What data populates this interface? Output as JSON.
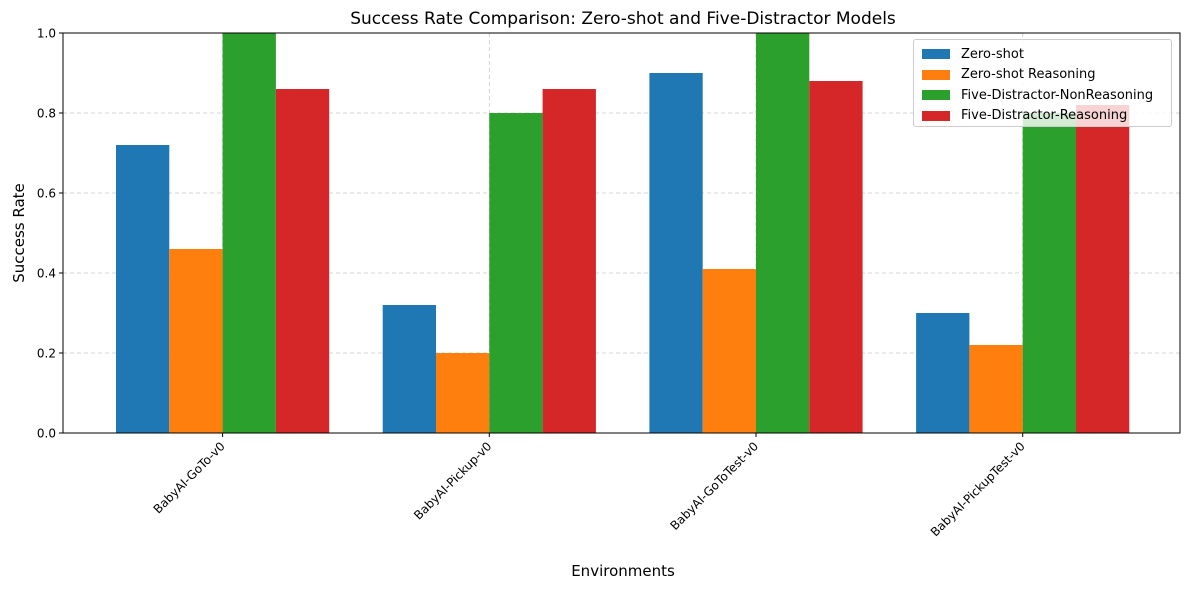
{
  "chart_data": {
    "type": "bar",
    "title": "Success Rate Comparison: Zero-shot and Five-Distractor Models",
    "xlabel": "Environments",
    "ylabel": "Success Rate",
    "ylim": [
      0,
      1.0
    ],
    "yticks": [
      "0.0",
      "0.2",
      "0.4",
      "0.6",
      "0.8",
      "1.0"
    ],
    "grid": true,
    "legend_position": "top-right",
    "categories": [
      "BabyAI-GoTo-v0",
      "BabyAI-Pickup-v0",
      "BabyAI-GoToTest-v0",
      "BabyAI-PickupTest-v0"
    ],
    "series": [
      {
        "name": "Zero-shot",
        "color": "#1f77b4",
        "values": [
          0.72,
          0.32,
          0.9,
          0.3
        ]
      },
      {
        "name": "Zero-shot Reasoning",
        "color": "#ff7f0e",
        "values": [
          0.46,
          0.2,
          0.41,
          0.22
        ]
      },
      {
        "name": "Five-Distractor-NonReasoning",
        "color": "#2ca02c",
        "values": [
          1.0,
          0.8,
          1.0,
          0.8
        ]
      },
      {
        "name": "Five-Distractor-Reasoning",
        "color": "#d62728",
        "values": [
          0.86,
          0.86,
          0.88,
          0.82
        ]
      }
    ]
  }
}
